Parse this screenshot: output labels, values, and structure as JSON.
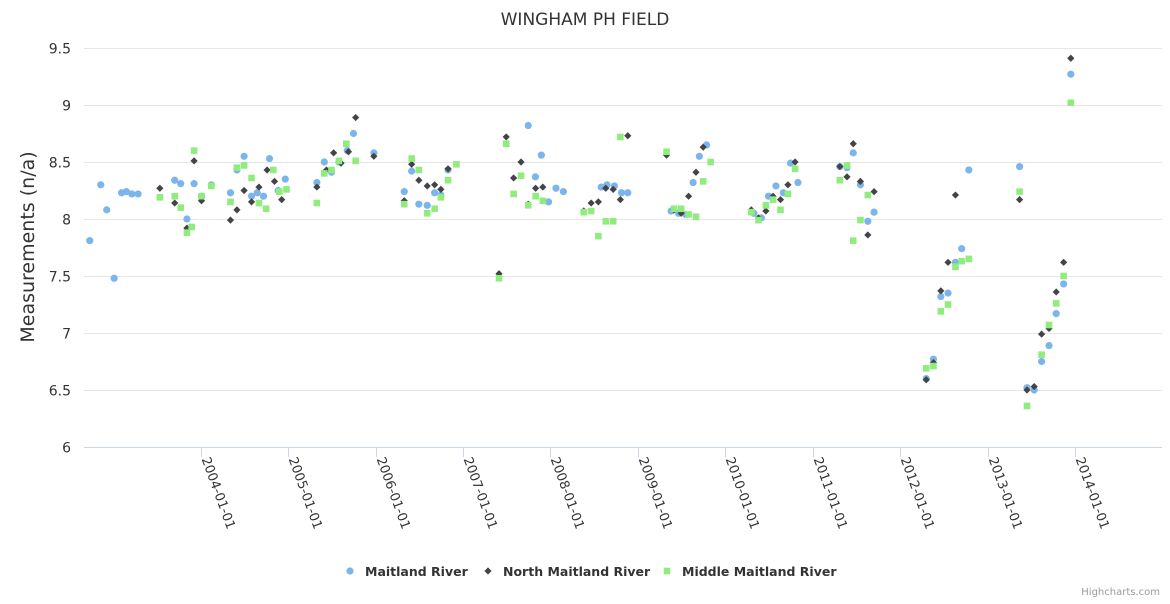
{
  "chart_data": {
    "type": "scatter",
    "title": "WINGHAM PH FIELD",
    "xlabel": "",
    "ylabel": "Measurements (n/a)",
    "ylim": [
      6,
      9.5
    ],
    "yticks": [
      "6",
      "6.5",
      "7",
      "7.5",
      "8",
      "8.5",
      "9",
      "9.5"
    ],
    "xlim": [
      "2002-09-01",
      "2014-12-31"
    ],
    "xticks": [
      "2004-01-01",
      "2005-01-01",
      "2006-01-01",
      "2007-01-01",
      "2008-01-01",
      "2009-01-01",
      "2010-01-01",
      "2011-01-01",
      "2012-01-01",
      "2013-01-01",
      "2014-01-01"
    ],
    "grid": true,
    "legend_position": "bottom-center",
    "credits": "Highcharts.com",
    "series": [
      {
        "name": "Maitland River",
        "color": "#7cb5ec",
        "marker": "circle",
        "points": [
          [
            "2002-09-25",
            7.81
          ],
          [
            "2002-11-10",
            8.3
          ],
          [
            "2002-12-05",
            8.08
          ],
          [
            "2003-01-05",
            7.48
          ],
          [
            "2003-02-05",
            8.23
          ],
          [
            "2003-02-25",
            8.24
          ],
          [
            "2003-03-20",
            8.22
          ],
          [
            "2003-04-15",
            8.22
          ],
          [
            "2003-09-15",
            8.34
          ],
          [
            "2003-10-10",
            8.31
          ],
          [
            "2003-11-05",
            8.0
          ],
          [
            "2003-12-05",
            8.31
          ],
          [
            "2004-01-05",
            8.2
          ],
          [
            "2004-02-15",
            8.3
          ],
          [
            "2004-05-05",
            8.23
          ],
          [
            "2004-06-01",
            8.43
          ],
          [
            "2004-07-01",
            8.55
          ],
          [
            "2004-08-01",
            8.2
          ],
          [
            "2004-08-25",
            8.23
          ],
          [
            "2004-09-20",
            8.2
          ],
          [
            "2004-10-15",
            8.53
          ],
          [
            "2004-11-20",
            8.25
          ],
          [
            "2004-12-20",
            8.35
          ],
          [
            "2005-05-01",
            8.32
          ],
          [
            "2005-06-01",
            8.5
          ],
          [
            "2005-07-01",
            8.41
          ],
          [
            "2005-08-01",
            8.5
          ],
          [
            "2005-09-05",
            8.6
          ],
          [
            "2005-10-01",
            8.75
          ],
          [
            "2005-12-25",
            8.58
          ],
          [
            "2006-05-01",
            8.24
          ],
          [
            "2006-06-01",
            8.42
          ],
          [
            "2006-07-01",
            8.13
          ],
          [
            "2006-08-05",
            8.12
          ],
          [
            "2006-09-05",
            8.23
          ],
          [
            "2006-10-01",
            8.21
          ],
          [
            "2006-10-31",
            8.43
          ],
          [
            "2007-10-01",
            8.82
          ],
          [
            "2007-10-31",
            8.37
          ],
          [
            "2007-11-25",
            8.56
          ],
          [
            "2007-12-25",
            8.15
          ],
          [
            "2008-01-25",
            8.27
          ],
          [
            "2008-02-25",
            8.24
          ],
          [
            "2008-08-01",
            8.28
          ],
          [
            "2008-08-25",
            8.3
          ],
          [
            "2008-09-25",
            8.29
          ],
          [
            "2008-10-25",
            8.23
          ],
          [
            "2008-11-20",
            8.23
          ],
          [
            "2009-05-20",
            8.07
          ],
          [
            "2009-06-20",
            8.05
          ],
          [
            "2009-07-20",
            8.04
          ],
          [
            "2009-08-20",
            8.32
          ],
          [
            "2009-09-15",
            8.55
          ],
          [
            "2009-10-15",
            8.65
          ],
          [
            "2010-05-01",
            8.05
          ],
          [
            "2010-06-01",
            8.01
          ],
          [
            "2010-07-01",
            8.2
          ],
          [
            "2010-08-01",
            8.29
          ],
          [
            "2010-09-01",
            8.23
          ],
          [
            "2010-10-01",
            8.49
          ],
          [
            "2010-11-01",
            8.32
          ],
          [
            "2011-04-25",
            8.46
          ],
          [
            "2011-05-25",
            8.45
          ],
          [
            "2011-06-20",
            8.58
          ],
          [
            "2011-07-20",
            8.3
          ],
          [
            "2011-08-20",
            7.98
          ],
          [
            "2011-09-15",
            8.06
          ],
          [
            "2012-04-20",
            6.6
          ],
          [
            "2012-05-20",
            6.77
          ],
          [
            "2012-06-20",
            7.32
          ],
          [
            "2012-07-20",
            7.35
          ],
          [
            "2012-08-20",
            7.62
          ],
          [
            "2012-09-15",
            7.74
          ],
          [
            "2012-10-15",
            8.43
          ],
          [
            "2013-05-15",
            8.46
          ],
          [
            "2013-06-15",
            6.52
          ],
          [
            "2013-07-15",
            6.5
          ],
          [
            "2013-08-15",
            6.75
          ],
          [
            "2013-09-15",
            6.89
          ],
          [
            "2013-10-15",
            7.17
          ],
          [
            "2013-11-15",
            7.43
          ],
          [
            "2013-12-15",
            9.27
          ]
        ]
      },
      {
        "name": "North Maitland River",
        "color": "#434348",
        "marker": "diamond",
        "points": [
          [
            "2003-07-15",
            8.27
          ],
          [
            "2003-09-15",
            8.14
          ],
          [
            "2003-11-05",
            7.92
          ],
          [
            "2003-12-05",
            8.51
          ],
          [
            "2004-01-05",
            8.16
          ],
          [
            "2004-05-05",
            7.99
          ],
          [
            "2004-06-01",
            8.08
          ],
          [
            "2004-07-01",
            8.25
          ],
          [
            "2004-08-01",
            8.15
          ],
          [
            "2004-09-01",
            8.28
          ],
          [
            "2004-10-05",
            8.43
          ],
          [
            "2004-11-05",
            8.33
          ],
          [
            "2004-12-05",
            8.17
          ],
          [
            "2005-05-01",
            8.28
          ],
          [
            "2005-06-10",
            8.43
          ],
          [
            "2005-07-10",
            8.58
          ],
          [
            "2005-08-10",
            8.49
          ],
          [
            "2005-09-10",
            8.59
          ],
          [
            "2005-10-10",
            8.89
          ],
          [
            "2005-12-25",
            8.55
          ],
          [
            "2006-05-01",
            8.16
          ],
          [
            "2006-06-01",
            8.48
          ],
          [
            "2006-07-01",
            8.34
          ],
          [
            "2006-08-05",
            8.29
          ],
          [
            "2006-09-05",
            8.3
          ],
          [
            "2006-10-01",
            8.26
          ],
          [
            "2006-10-31",
            8.44
          ],
          [
            "2007-06-01",
            7.52
          ],
          [
            "2007-07-01",
            8.72
          ],
          [
            "2007-08-01",
            8.36
          ],
          [
            "2007-09-01",
            8.5
          ],
          [
            "2007-10-01",
            8.13
          ],
          [
            "2007-11-01",
            8.27
          ],
          [
            "2007-12-01",
            8.28
          ],
          [
            "2008-05-20",
            8.07
          ],
          [
            "2008-06-20",
            8.14
          ],
          [
            "2008-07-20",
            8.15
          ],
          [
            "2008-08-20",
            8.27
          ],
          [
            "2008-09-20",
            8.26
          ],
          [
            "2008-10-20",
            8.17
          ],
          [
            "2008-11-20",
            8.73
          ],
          [
            "2009-05-01",
            8.56
          ],
          [
            "2009-06-01",
            8.08
          ],
          [
            "2009-07-01",
            8.05
          ],
          [
            "2009-08-01",
            8.2
          ],
          [
            "2009-09-01",
            8.41
          ],
          [
            "2009-10-01",
            8.63
          ],
          [
            "2010-04-20",
            8.08
          ],
          [
            "2010-05-20",
            8.01
          ],
          [
            "2010-06-20",
            8.07
          ],
          [
            "2010-07-20",
            8.2
          ],
          [
            "2010-08-20",
            8.17
          ],
          [
            "2010-09-20",
            8.3
          ],
          [
            "2010-10-20",
            8.5
          ],
          [
            "2011-04-25",
            8.46
          ],
          [
            "2011-05-25",
            8.37
          ],
          [
            "2011-06-20",
            8.66
          ],
          [
            "2011-07-20",
            8.33
          ],
          [
            "2011-08-20",
            7.86
          ],
          [
            "2011-09-15",
            8.24
          ],
          [
            "2012-04-20",
            6.59
          ],
          [
            "2012-05-20",
            6.74
          ],
          [
            "2012-06-20",
            7.37
          ],
          [
            "2012-07-20",
            7.62
          ],
          [
            "2012-08-20",
            8.21
          ],
          [
            "2013-05-15",
            8.17
          ],
          [
            "2013-06-15",
            6.5
          ],
          [
            "2013-07-15",
            6.53
          ],
          [
            "2013-08-15",
            6.99
          ],
          [
            "2013-09-15",
            7.04
          ],
          [
            "2013-10-15",
            7.36
          ],
          [
            "2013-11-15",
            7.62
          ],
          [
            "2013-12-15",
            9.41
          ]
        ]
      },
      {
        "name": "Middle Maitland River",
        "color": "#90ed7d",
        "marker": "square",
        "points": [
          [
            "2003-07-15",
            8.19
          ],
          [
            "2003-09-15",
            8.2
          ],
          [
            "2003-10-10",
            8.1
          ],
          [
            "2003-11-05",
            7.88
          ],
          [
            "2003-11-25",
            7.93
          ],
          [
            "2003-12-05",
            8.6
          ],
          [
            "2004-01-05",
            8.2
          ],
          [
            "2004-02-15",
            8.29
          ],
          [
            "2004-05-05",
            8.15
          ],
          [
            "2004-06-01",
            8.45
          ],
          [
            "2004-07-01",
            8.47
          ],
          [
            "2004-08-01",
            8.36
          ],
          [
            "2004-09-01",
            8.14
          ],
          [
            "2004-10-01",
            8.09
          ],
          [
            "2004-10-31",
            8.43
          ],
          [
            "2004-11-25",
            8.24
          ],
          [
            "2004-12-25",
            8.26
          ],
          [
            "2005-05-01",
            8.14
          ],
          [
            "2005-06-01",
            8.4
          ],
          [
            "2005-07-01",
            8.43
          ],
          [
            "2005-08-01",
            8.51
          ],
          [
            "2005-09-01",
            8.66
          ],
          [
            "2005-10-10",
            8.51
          ],
          [
            "2006-05-01",
            8.13
          ],
          [
            "2006-06-01",
            8.53
          ],
          [
            "2006-07-01",
            8.43
          ],
          [
            "2006-08-05",
            8.05
          ],
          [
            "2006-09-05",
            8.09
          ],
          [
            "2006-10-01",
            8.19
          ],
          [
            "2006-10-31",
            8.34
          ],
          [
            "2006-12-05",
            8.48
          ],
          [
            "2007-06-01",
            7.48
          ],
          [
            "2007-07-01",
            8.66
          ],
          [
            "2007-08-01",
            8.22
          ],
          [
            "2007-09-01",
            8.38
          ],
          [
            "2007-10-01",
            8.12
          ],
          [
            "2007-11-01",
            8.2
          ],
          [
            "2007-12-01",
            8.16
          ],
          [
            "2008-05-20",
            8.06
          ],
          [
            "2008-06-20",
            8.07
          ],
          [
            "2008-07-20",
            7.85
          ],
          [
            "2008-08-20",
            7.98
          ],
          [
            "2008-09-20",
            7.98
          ],
          [
            "2008-10-20",
            8.72
          ],
          [
            "2009-05-01",
            8.59
          ],
          [
            "2009-06-01",
            8.09
          ],
          [
            "2009-07-01",
            8.09
          ],
          [
            "2009-08-01",
            8.04
          ],
          [
            "2009-09-01",
            8.02
          ],
          [
            "2009-10-01",
            8.33
          ],
          [
            "2009-11-01",
            8.5
          ],
          [
            "2010-04-20",
            8.06
          ],
          [
            "2010-05-20",
            7.99
          ],
          [
            "2010-06-20",
            8.12
          ],
          [
            "2010-07-20",
            8.17
          ],
          [
            "2010-08-20",
            8.08
          ],
          [
            "2010-09-20",
            8.22
          ],
          [
            "2010-10-20",
            8.44
          ],
          [
            "2011-04-25",
            8.34
          ],
          [
            "2011-05-25",
            8.47
          ],
          [
            "2011-06-20",
            7.81
          ],
          [
            "2011-07-20",
            7.99
          ],
          [
            "2011-08-20",
            8.21
          ],
          [
            "2012-04-20",
            6.69
          ],
          [
            "2012-05-20",
            6.71
          ],
          [
            "2012-06-20",
            7.19
          ],
          [
            "2012-07-20",
            7.25
          ],
          [
            "2012-08-20",
            7.58
          ],
          [
            "2012-09-15",
            7.63
          ],
          [
            "2012-10-15",
            7.65
          ],
          [
            "2013-05-15",
            8.24
          ],
          [
            "2013-06-15",
            6.36
          ],
          [
            "2013-08-15",
            6.81
          ],
          [
            "2013-09-15",
            7.07
          ],
          [
            "2013-10-15",
            7.26
          ],
          [
            "2013-11-15",
            7.5
          ],
          [
            "2013-12-15",
            9.02
          ]
        ]
      }
    ]
  }
}
